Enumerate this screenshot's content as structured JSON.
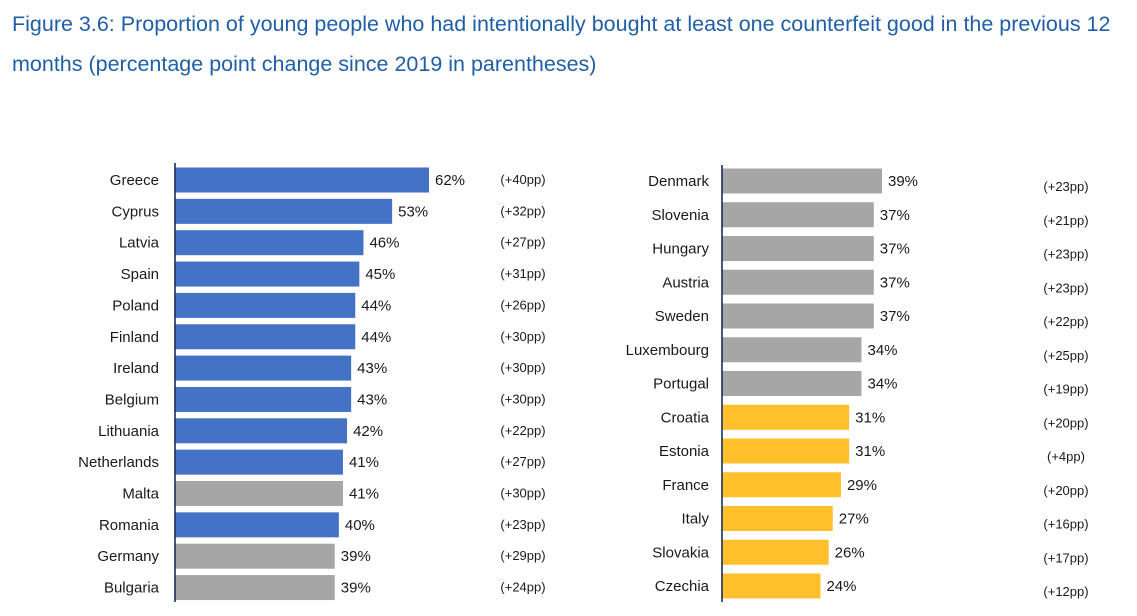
{
  "figure_title": "Figure 3.6: Proportion of young people who had intentionally bought at least one counterfeit good in the previous 12 months (percentage point change since 2019 in parentheses)",
  "colors": {
    "above_average": "#4472c4",
    "near_average": "#a6a6a6",
    "below_average": "#ffc02c",
    "title": "#1f5fa8",
    "axis": "#1a2e5a"
  },
  "chart_data": [
    {
      "type": "bar",
      "orientation": "horizontal",
      "categories": [
        "Greece",
        "Cyprus",
        "Latvia",
        "Spain",
        "Poland",
        "Finland",
        "Ireland",
        "Belgium",
        "Lithuania",
        "Netherlands",
        "Malta",
        "Romania",
        "Germany",
        "Bulgaria"
      ],
      "values": [
        62,
        53,
        46,
        45,
        44,
        44,
        43,
        43,
        42,
        41,
        41,
        40,
        39,
        39
      ],
      "labels": [
        "62%",
        "53%",
        "46%",
        "45%",
        "44%",
        "44%",
        "43%",
        "43%",
        "42%",
        "41%",
        "41%",
        "40%",
        "39%",
        "39%"
      ],
      "changes": [
        "(+40pp)",
        "(+32pp)",
        "(+27pp)",
        "(+31pp)",
        "(+26pp)",
        "(+30pp)",
        "(+30pp)",
        "(+30pp)",
        "(+22pp)",
        "(+27pp)",
        "(+30pp)",
        "(+23pp)",
        "(+29pp)",
        "(+24pp)"
      ],
      "color_groups": [
        "above_average",
        "above_average",
        "above_average",
        "above_average",
        "above_average",
        "above_average",
        "above_average",
        "above_average",
        "above_average",
        "above_average",
        "near_average",
        "above_average",
        "near_average",
        "near_average"
      ],
      "xlim": [
        0,
        62
      ],
      "grid": false
    },
    {
      "type": "bar",
      "orientation": "horizontal",
      "categories": [
        "Denmark",
        "Slovenia",
        "Hungary",
        "Austria",
        "Sweden",
        "Luxembourg",
        "Portugal",
        "Croatia",
        "Estonia",
        "France",
        "Italy",
        "Slovakia",
        "Czechia"
      ],
      "values": [
        39,
        37,
        37,
        37,
        37,
        34,
        34,
        31,
        31,
        29,
        27,
        26,
        24
      ],
      "labels": [
        "39%",
        "37%",
        "37%",
        "37%",
        "37%",
        "34%",
        "34%",
        "31%",
        "31%",
        "29%",
        "27%",
        "26%",
        "24%"
      ],
      "changes": [
        "(+23pp)",
        "(+21pp)",
        "(+23pp)",
        "(+23pp)",
        "(+22pp)",
        "(+25pp)",
        "(+19pp)",
        "(+20pp)",
        "(+4pp)",
        "(+20pp)",
        "(+16pp)",
        "(+17pp)",
        "(+12pp)"
      ],
      "color_groups": [
        "near_average",
        "near_average",
        "near_average",
        "near_average",
        "near_average",
        "near_average",
        "near_average",
        "below_average",
        "below_average",
        "below_average",
        "below_average",
        "below_average",
        "below_average"
      ],
      "xlim": [
        0,
        39
      ],
      "grid": false
    }
  ]
}
